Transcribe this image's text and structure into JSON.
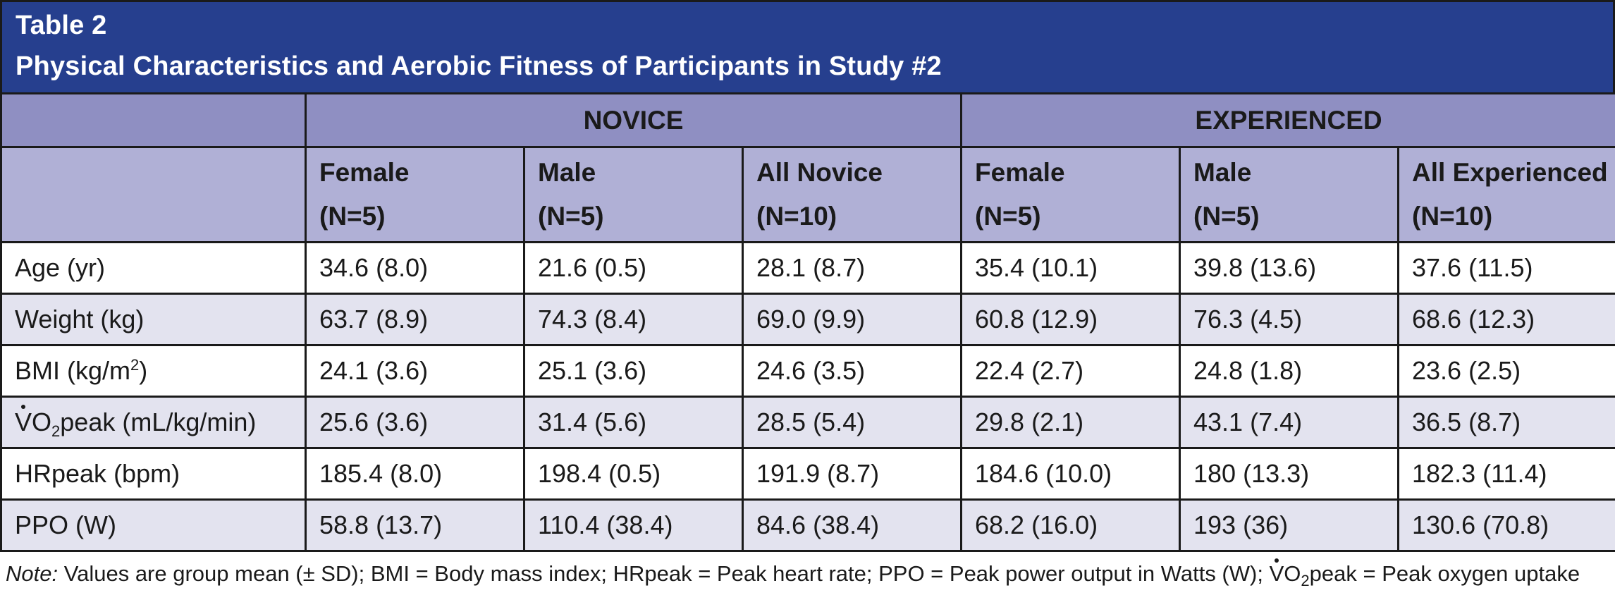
{
  "title": {
    "label": "Table 2",
    "caption": "Physical Characteristics and Aerobic Fitness of Participants in Study #2"
  },
  "groups": [
    "NOVICE",
    "EXPERIENCED"
  ],
  "subgroups": [
    {
      "name": "Female",
      "n": "(N=5)"
    },
    {
      "name": "Male",
      "n": "(N=5)"
    },
    {
      "name": "All Novice",
      "n": "(N=10)"
    },
    {
      "name": "Female",
      "n": "(N=5)"
    },
    {
      "name": "Male",
      "n": "(N=5)"
    },
    {
      "name": "All Experienced",
      "n": "(N=10)"
    }
  ],
  "rows": [
    {
      "label": "Age (yr)",
      "values": [
        "34.6 (8.0)",
        "21.6 (0.5)",
        "28.1 (8.7)",
        "35.4 (10.1)",
        "39.8 (13.6)",
        "37.6 (11.5)"
      ]
    },
    {
      "label": "Weight (kg)",
      "values": [
        "63.7 (8.9)",
        "74.3 (8.4)",
        "69.0 (9.9)",
        "60.8 (12.9)",
        "76.3 (4.5)",
        "68.6 (12.3)"
      ]
    },
    {
      "label_pre": "BMI (kg/m",
      "label_sup": "2",
      "label_post": ")",
      "values": [
        "24.1 (3.6)",
        "25.1 (3.6)",
        "24.6 (3.5)",
        "22.4 (2.7)",
        "24.8 (1.8)",
        "23.6 (2.5)"
      ]
    },
    {
      "label_v": "V",
      "label_o": "O",
      "label_sub": "2",
      "label_post": "peak (mL/kg/min)",
      "values": [
        "25.6 (3.6)",
        "31.4 (5.6)",
        "28.5 (5.4)",
        "29.8 (2.1)",
        "43.1 (7.4)",
        "36.5 (8.7)"
      ]
    },
    {
      "label": "HRpeak (bpm)",
      "values": [
        "185.4 (8.0)",
        "198.4 (0.5)",
        "191.9 (8.7)",
        "184.6 (10.0)",
        "180 (13.3)",
        "182.3 (11.4)"
      ]
    },
    {
      "label": "PPO (W)",
      "values": [
        "58.8 (13.7)",
        "110.4 (38.4)",
        "84.6 (38.4)",
        "68.2 (16.0)",
        "193 (36)",
        "130.6 (70.8)"
      ]
    }
  ],
  "note": {
    "prefix": "Note:",
    "text": " Values are group mean (± SD); BMI = Body mass index; HRpeak = Peak heart rate; PPO = Peak power output in Watts (W); ",
    "v": "V",
    "o": "O",
    "sub": "2",
    "tail": "peak = Peak oxygen uptake"
  }
}
